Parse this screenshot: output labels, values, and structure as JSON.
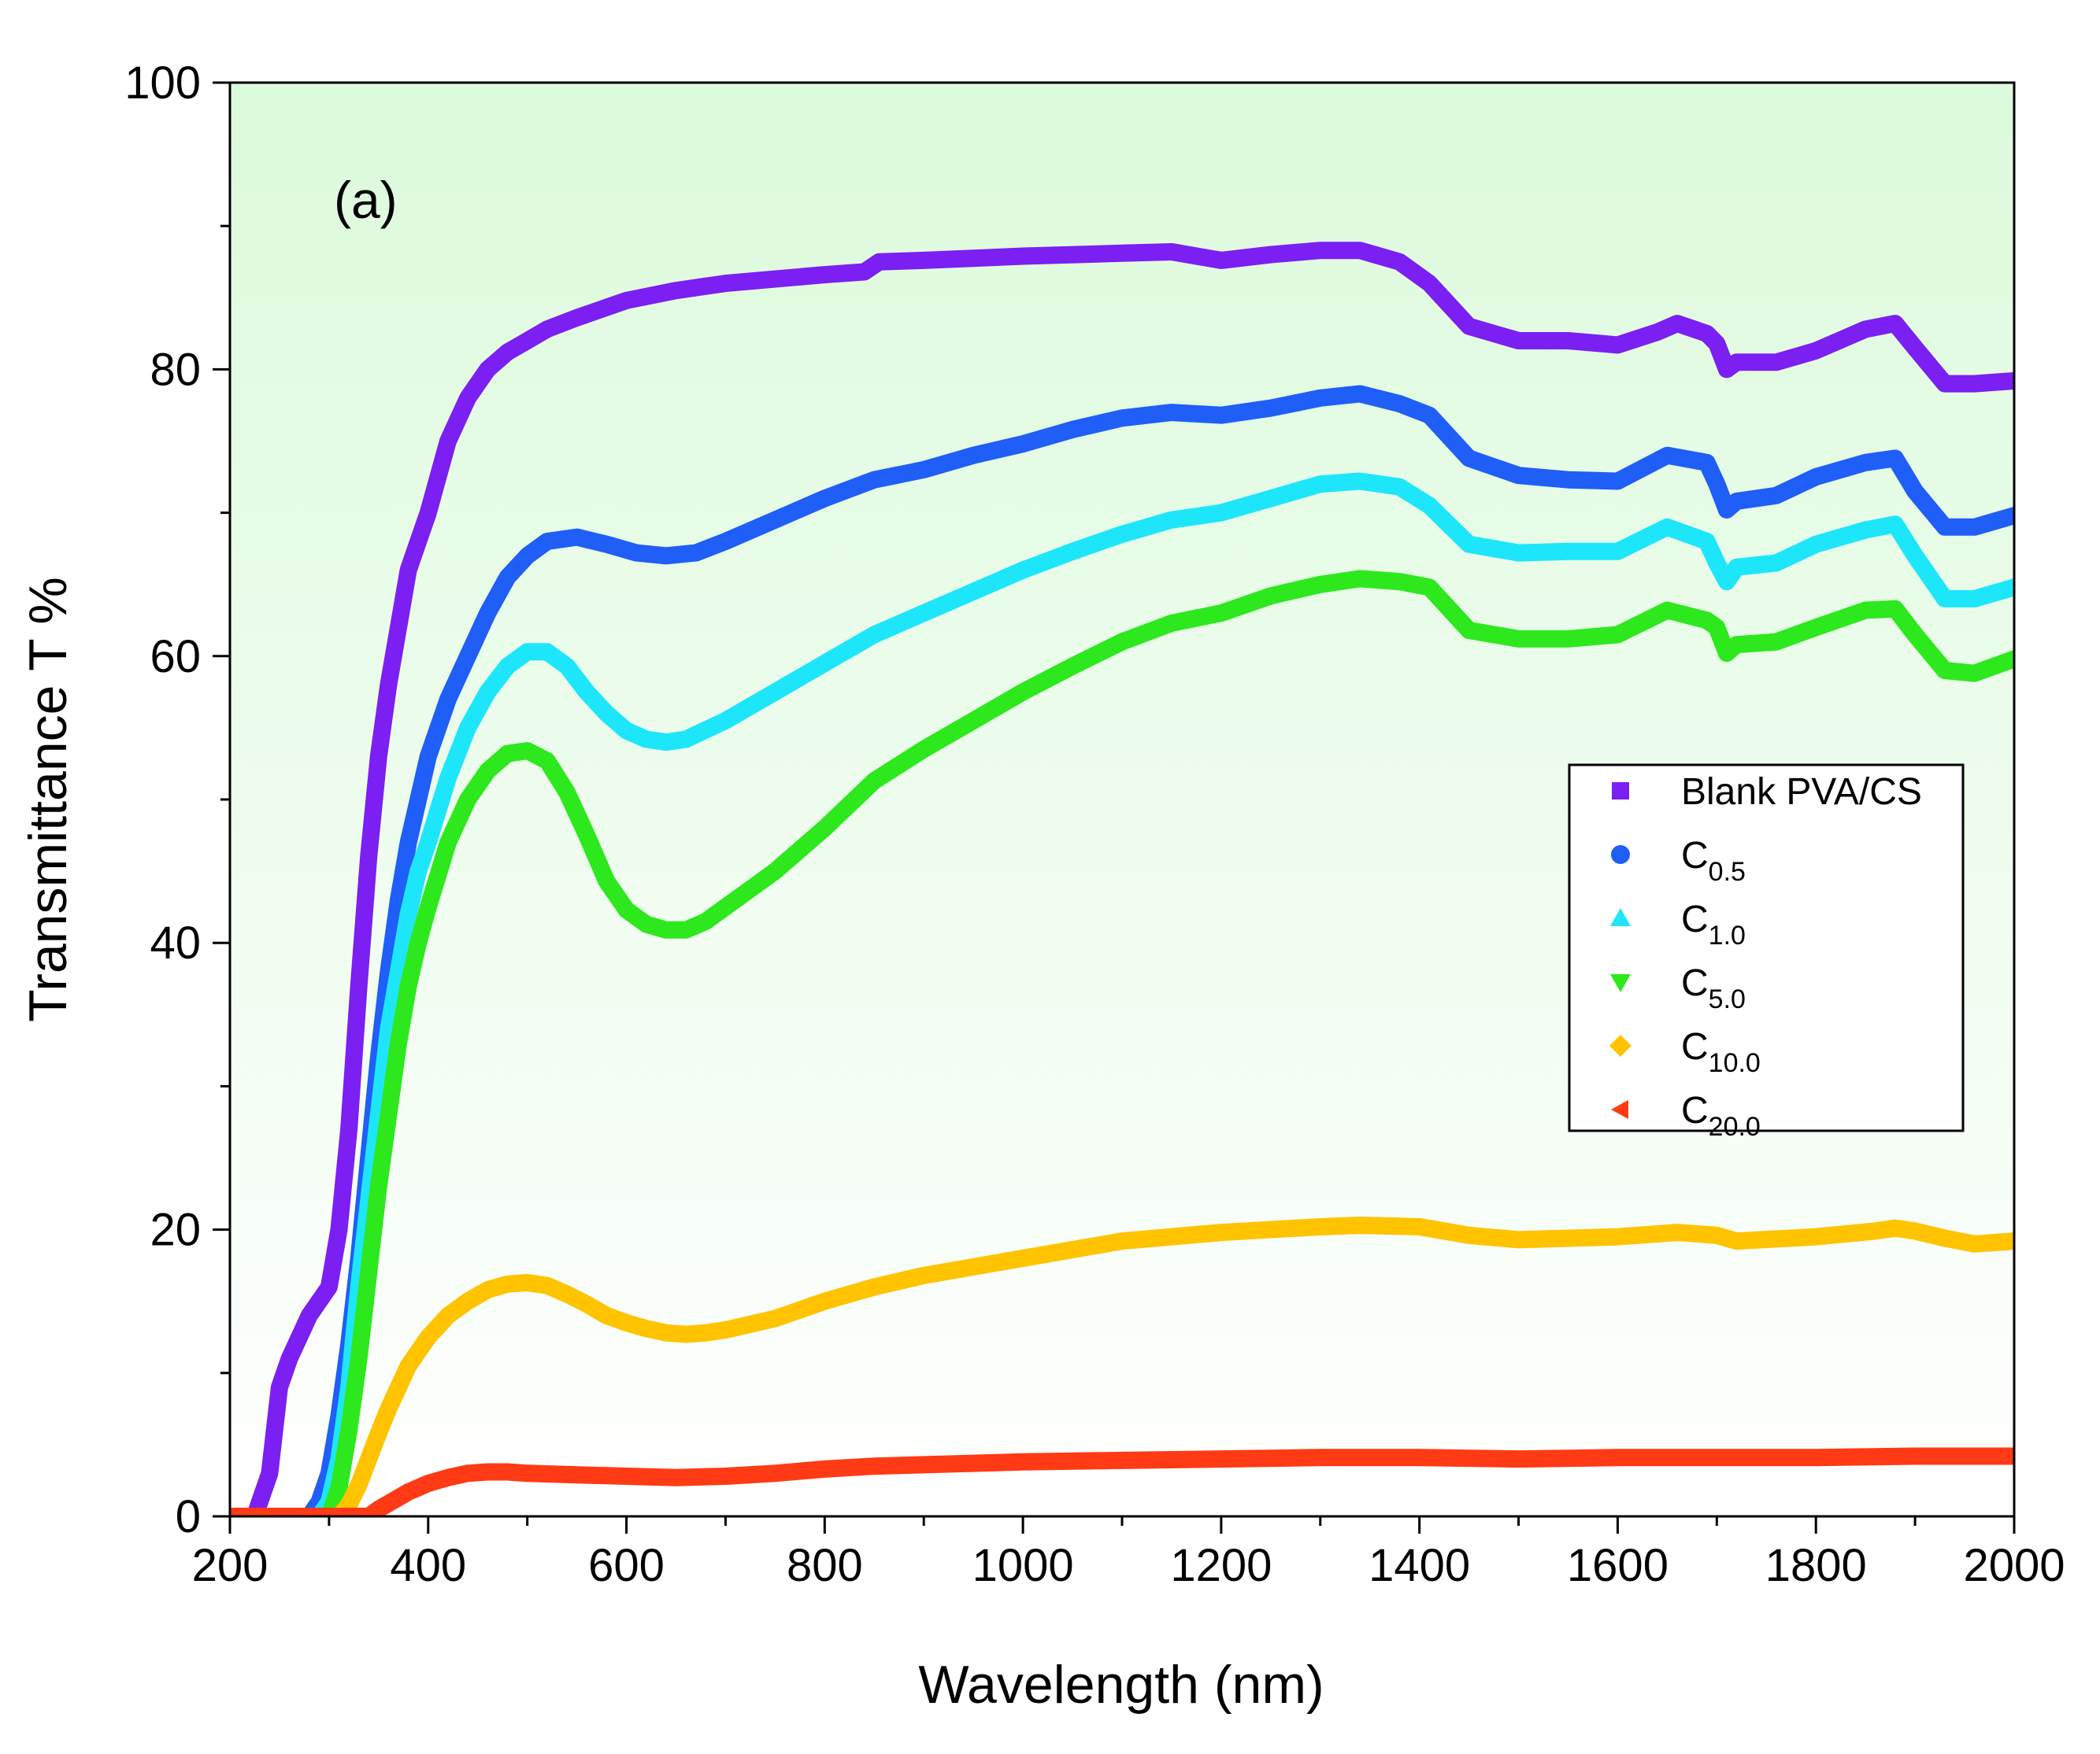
{
  "chart_data": {
    "type": "line",
    "title": "",
    "annotation": "(a)",
    "xlabel": "Wavelength (nm)",
    "ylabel": "Transmittance T %",
    "xlim": [
      200,
      2000
    ],
    "ylim": [
      0,
      100
    ],
    "xticks": [
      200,
      400,
      600,
      800,
      1000,
      1200,
      1400,
      1600,
      1800,
      2000
    ],
    "yticks": [
      0,
      20,
      40,
      60,
      80,
      100
    ],
    "background_gradient": [
      "#dcfadc",
      "#ffffff"
    ],
    "legend_position": "center-right",
    "series": [
      {
        "name": "Blank PVA/CS",
        "label_main": "Blank PVA/CS",
        "label_sub": "",
        "color": "#7b1ff2",
        "marker": "square",
        "x": [
          200,
          225,
          240,
          250,
          260,
          280,
          300,
          310,
          320,
          330,
          340,
          350,
          360,
          370,
          380,
          390,
          400,
          420,
          440,
          460,
          480,
          500,
          520,
          550,
          600,
          650,
          700,
          750,
          800,
          840,
          855,
          900,
          1000,
          1100,
          1150,
          1200,
          1250,
          1300,
          1340,
          1380,
          1410,
          1450,
          1500,
          1550,
          1600,
          1640,
          1660,
          1690,
          1700,
          1710,
          1720,
          1760,
          1800,
          1850,
          1880,
          1900,
          1930,
          1960,
          2000
        ],
        "y": [
          0,
          0,
          3,
          9,
          11,
          14,
          16,
          20,
          27,
          37,
          46,
          53,
          58,
          62,
          66,
          68,
          70,
          75,
          78,
          80,
          81.2,
          82,
          82.8,
          83.6,
          84.8,
          85.5,
          86,
          86.3,
          86.6,
          86.8,
          87.5,
          87.6,
          87.9,
          88.1,
          88.2,
          87.6,
          88,
          88.3,
          88.3,
          87.5,
          86,
          83,
          82,
          82,
          81.7,
          82.6,
          83.2,
          82.5,
          81.8,
          80,
          80.5,
          80.5,
          81.3,
          82.8,
          83.2,
          81.5,
          79,
          79,
          79.2
        ]
      },
      {
        "name": "C0.5",
        "label_main": "C",
        "label_sub": "0.5",
        "color": "#1f5ef7",
        "marker": "circle",
        "x": [
          200,
          280,
          290,
          300,
          310,
          320,
          330,
          340,
          350,
          360,
          370,
          380,
          390,
          400,
          420,
          440,
          460,
          480,
          500,
          520,
          550,
          580,
          610,
          640,
          670,
          700,
          750,
          800,
          850,
          900,
          950,
          1000,
          1050,
          1100,
          1150,
          1200,
          1250,
          1300,
          1340,
          1380,
          1410,
          1450,
          1500,
          1550,
          1600,
          1650,
          1690,
          1700,
          1710,
          1720,
          1760,
          1800,
          1850,
          1880,
          1900,
          1930,
          1960,
          2000
        ],
        "y": [
          0,
          0,
          1,
          3,
          7,
          12,
          18,
          25,
          32,
          38,
          43,
          47,
          50,
          53,
          57,
          60,
          63,
          65.5,
          67,
          68,
          68.3,
          67.8,
          67.2,
          67,
          67.2,
          68,
          69.5,
          71,
          72.3,
          73,
          74,
          74.8,
          75.8,
          76.6,
          77,
          76.8,
          77.3,
          78,
          78.3,
          77.6,
          76.8,
          73.8,
          72.6,
          72.3,
          72.2,
          74,
          73.5,
          72,
          70.2,
          70.8,
          71.2,
          72.5,
          73.5,
          73.8,
          71.5,
          69,
          69,
          69.8
        ]
      },
      {
        "name": "C1.0",
        "label_main": "C",
        "label_sub": "1.0",
        "color": "#1ee6fa",
        "marker": "triangle-up",
        "x": [
          200,
          290,
          300,
          310,
          320,
          330,
          340,
          350,
          360,
          370,
          380,
          390,
          400,
          420,
          440,
          460,
          480,
          500,
          520,
          540,
          560,
          580,
          600,
          620,
          640,
          660,
          700,
          750,
          800,
          850,
          900,
          950,
          1000,
          1050,
          1100,
          1150,
          1200,
          1250,
          1300,
          1340,
          1380,
          1410,
          1450,
          1500,
          1550,
          1600,
          1650,
          1690,
          1700,
          1710,
          1720,
          1760,
          1800,
          1850,
          1880,
          1900,
          1930,
          1960,
          2000
        ],
        "y": [
          0,
          0,
          1,
          4,
          9,
          16,
          22,
          28,
          34,
          38,
          42,
          45,
          47,
          51.5,
          55,
          57.5,
          59.3,
          60.3,
          60.3,
          59.3,
          57.5,
          56,
          54.8,
          54.2,
          54,
          54.2,
          55.5,
          57.5,
          59.5,
          61.5,
          63,
          64.5,
          66,
          67.3,
          68.5,
          69.5,
          70,
          71,
          72,
          72.2,
          71.8,
          70.5,
          67.8,
          67.2,
          67.3,
          67.3,
          69,
          68,
          66.5,
          65.2,
          66.2,
          66.5,
          67.8,
          68.8,
          69.2,
          67,
          64,
          64,
          64.8
        ]
      },
      {
        "name": "C5.0",
        "label_main": "C",
        "label_sub": "5.0",
        "color": "#2ee81e",
        "marker": "triangle-down",
        "x": [
          200,
          300,
          310,
          320,
          330,
          340,
          350,
          360,
          370,
          380,
          390,
          400,
          420,
          440,
          460,
          480,
          500,
          520,
          540,
          560,
          580,
          600,
          620,
          640,
          660,
          680,
          700,
          750,
          800,
          850,
          900,
          950,
          1000,
          1050,
          1100,
          1150,
          1200,
          1250,
          1300,
          1340,
          1380,
          1410,
          1450,
          1500,
          1550,
          1600,
          1650,
          1690,
          1700,
          1710,
          1720,
          1760,
          1800,
          1850,
          1880,
          1900,
          1930,
          1960,
          2000
        ],
        "y": [
          0,
          0,
          2,
          6,
          11,
          17,
          23,
          28,
          33,
          37,
          40,
          42.5,
          47,
          50,
          52,
          53.2,
          53.4,
          52.7,
          50.5,
          47.5,
          44.3,
          42.3,
          41.3,
          40.9,
          40.9,
          41.5,
          42.5,
          45,
          48,
          51.3,
          53.5,
          55.5,
          57.5,
          59.3,
          61,
          62.3,
          63,
          64.2,
          65,
          65.4,
          65.2,
          64.8,
          61.8,
          61.2,
          61.2,
          61.5,
          63.2,
          62.5,
          62,
          60.2,
          60.8,
          61,
          62,
          63.2,
          63.3,
          61.5,
          59,
          58.8,
          59.8
        ]
      },
      {
        "name": "C10.0",
        "label_main": "C",
        "label_sub": "10.0",
        "color": "#ffc300",
        "marker": "diamond",
        "x": [
          200,
          310,
          320,
          330,
          340,
          350,
          360,
          370,
          380,
          400,
          420,
          440,
          460,
          480,
          500,
          520,
          540,
          560,
          580,
          600,
          620,
          640,
          660,
          680,
          700,
          750,
          800,
          850,
          900,
          1000,
          1100,
          1200,
          1300,
          1340,
          1400,
          1450,
          1500,
          1600,
          1660,
          1700,
          1720,
          1800,
          1860,
          1880,
          1900,
          1930,
          1960,
          2000
        ],
        "y": [
          0,
          0,
          0.8,
          2.2,
          4,
          5.8,
          7.5,
          9,
          10.5,
          12.5,
          14,
          15,
          15.8,
          16.2,
          16.3,
          16.1,
          15.5,
          14.8,
          14,
          13.5,
          13.1,
          12.8,
          12.7,
          12.8,
          13,
          13.8,
          15,
          16,
          16.8,
          18,
          19.2,
          19.8,
          20.2,
          20.3,
          20.2,
          19.6,
          19.3,
          19.5,
          19.8,
          19.6,
          19.2,
          19.5,
          19.9,
          20.1,
          19.9,
          19.4,
          19,
          19.2
        ]
      },
      {
        "name": "C20.0",
        "label_main": "C",
        "label_sub": "20.0",
        "color": "#ff3a14",
        "marker": "triangle-left",
        "x": [
          200,
          340,
          350,
          360,
          370,
          380,
          390,
          400,
          420,
          440,
          460,
          480,
          500,
          550,
          600,
          650,
          700,
          750,
          800,
          850,
          900,
          1000,
          1100,
          1200,
          1300,
          1400,
          1500,
          1600,
          1700,
          1800,
          1900,
          2000
        ],
        "y": [
          0,
          0,
          0.5,
          0.9,
          1.3,
          1.7,
          2,
          2.3,
          2.7,
          3,
          3.1,
          3.1,
          3,
          2.9,
          2.8,
          2.7,
          2.8,
          3,
          3.3,
          3.5,
          3.6,
          3.8,
          3.9,
          4,
          4.1,
          4.1,
          4,
          4.1,
          4.1,
          4.1,
          4.2,
          4.2
        ]
      }
    ]
  }
}
